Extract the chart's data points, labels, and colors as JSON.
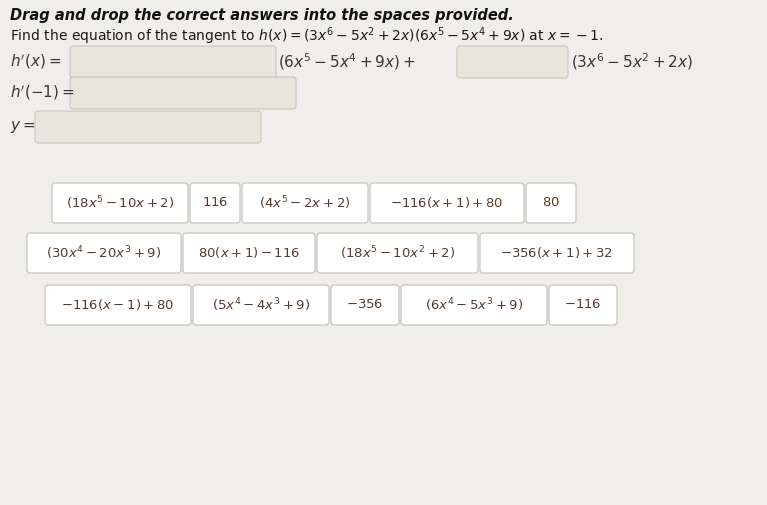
{
  "bg_color": "#f0eeea",
  "tile_fill": "#ffffff",
  "tile_edge": "#c8c5be",
  "blank_fill": "#e8e5dd",
  "blank_edge": "#c8c5be",
  "text_color": "#3a3530",
  "math_color": "#5a3a2a",
  "title1": "Drag and drop the correct answers into the spaces provided.",
  "title2": "Find the equation of the tangent to $h(x) =(3x^6-5x^2+2x)(6x^5-5x^4+9x)$ at $x = -1$.",
  "row1": [
    [
      "$(18x^5-10x+2)$",
      130
    ],
    [
      "$116$",
      44
    ],
    [
      "$(4x^5-2x+2)$",
      120
    ],
    [
      "$-116(x+1)+80$",
      148
    ],
    [
      "$80$",
      44
    ]
  ],
  "row2": [
    [
      "$(30x^4-20x^3+9)$",
      148
    ],
    [
      "$80(x+1)-116$",
      126
    ],
    [
      "$(18x^5-10x^2+2)$",
      155
    ],
    [
      "$-356(x+1)+32$",
      148
    ]
  ],
  "row3": [
    [
      "$-116(x-1)+80$",
      140
    ],
    [
      "$(5x^4-4x^3+9)$",
      130
    ],
    [
      "$-356$",
      62
    ],
    [
      "$(6x^4-5x^3+9)$",
      140
    ],
    [
      "$-116$",
      62
    ]
  ]
}
